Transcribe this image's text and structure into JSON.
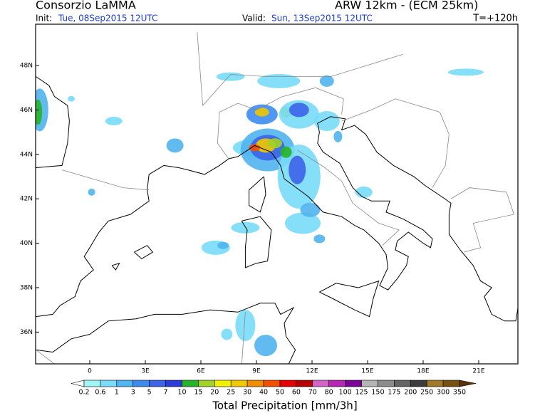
{
  "header": {
    "title": "Consorzio LaMMA",
    "model": "ARW 12km - (ECM 25km)",
    "init_label": "Init:",
    "init": "Tue, 08Sep2015 12UTC",
    "valid_label": "Valid:",
    "valid": "Sun, 13Sep2015 12UTC",
    "step": "T=+120h"
  },
  "map": {
    "lat_labels": [
      "48N",
      "46N",
      "44N",
      "42N",
      "40N",
      "38N",
      "36N"
    ],
    "lon_labels": [
      "0",
      "3E",
      "6E",
      "9E",
      "12E",
      "15E",
      "18E",
      "21E"
    ]
  },
  "colorbar": {
    "title": "Total Precipitation [mm/3h]",
    "levels": [
      0.2,
      0.6,
      1,
      3,
      5,
      7,
      10,
      15,
      20,
      25,
      30,
      40,
      50,
      60,
      70,
      80,
      100,
      125,
      150,
      175,
      200,
      250,
      300,
      350
    ],
    "colors": [
      "#a0f5f5",
      "#78dcf8",
      "#50b4f0",
      "#3c8cf0",
      "#3c64e8",
      "#2c3cd8",
      "#28b428",
      "#a0d228",
      "#f0f000",
      "#f0c800",
      "#f08c00",
      "#f05000",
      "#e60000",
      "#b40000",
      "#d264c8",
      "#b428b4",
      "#7a0096",
      "#b4b4b4",
      "#8c8c8c",
      "#646464",
      "#3c3c3c",
      "#a07828",
      "#785014"
    ],
    "under_color": "#ffffff",
    "over_color": "#5a3208"
  }
}
